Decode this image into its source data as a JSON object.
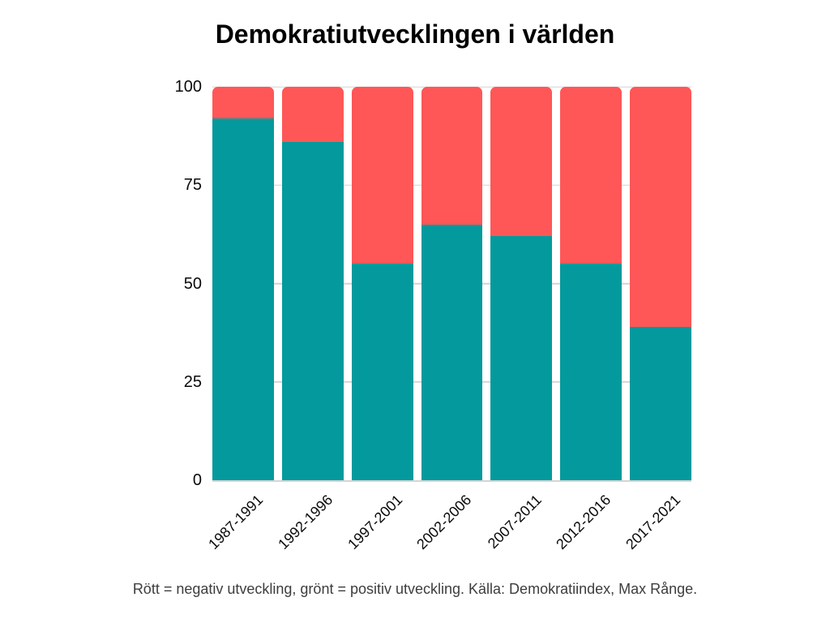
{
  "page": {
    "title": "Demokratiutvecklingen i världen",
    "caption": "Rött = negativ utveckling, grönt = positiv utveckling. Källa: Demokratiindex, Max Rånge."
  },
  "colors": {
    "positive_teal": "#049a9d",
    "negative_red": "#ff5757",
    "gridline": "#d4d4d4",
    "axis_text": "#0a0a0a",
    "caption_text": "#3d3d3d",
    "title_text": "#000000",
    "background": "#ffffff"
  },
  "chart_data": {
    "type": "bar",
    "stacked": true,
    "title": "Demokratiutvecklingen i världen",
    "categories": [
      "1987-1991",
      "1992-1996",
      "1997-2001",
      "2002-2006",
      "2007-2011",
      "2012-2016",
      "2017-2021"
    ],
    "series": [
      {
        "name": "Positiv utveckling (grönt)",
        "color_key": "positive_teal",
        "values": [
          92,
          86,
          55,
          65,
          62,
          55,
          39
        ]
      },
      {
        "name": "Negativ utveckling (rött)",
        "color_key": "negative_red",
        "values": [
          8,
          14,
          45,
          35,
          38,
          45,
          61
        ]
      }
    ],
    "ylim": [
      0,
      100
    ],
    "yticks": [
      0,
      25,
      50,
      75,
      100
    ],
    "grid": true,
    "legend": "none",
    "x_tick_rotation_deg": 45,
    "caption": "Rött = negativ utveckling, grönt = positiv utveckling. Källa: Demokratiindex, Max Rånge."
  }
}
